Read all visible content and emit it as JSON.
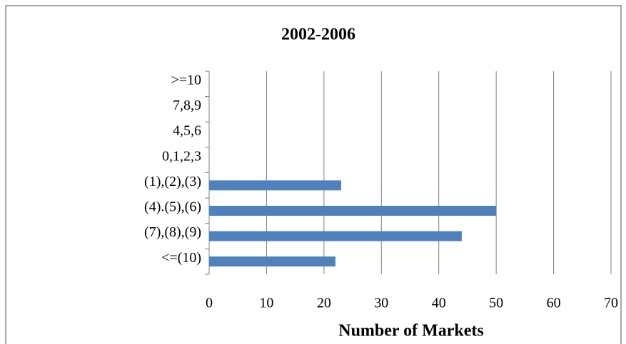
{
  "chart_data": {
    "type": "bar",
    "orientation": "horizontal",
    "title": "2002-2006",
    "x_label": "Number of Markets",
    "categories": [
      ">=10",
      "7,8,9",
      "4,5,6",
      "0,1,2,3",
      "(1),(2),(3)",
      "(4).(5),(6)",
      "(7),(8),(9)",
      "<=(10)"
    ],
    "values": [
      0,
      0,
      0,
      0,
      23,
      50,
      44,
      22
    ],
    "color": "#4f81bd",
    "xlim": [
      0,
      70
    ],
    "xticks": [
      0,
      10,
      20,
      30,
      40,
      50,
      60,
      70
    ],
    "grid": true
  }
}
